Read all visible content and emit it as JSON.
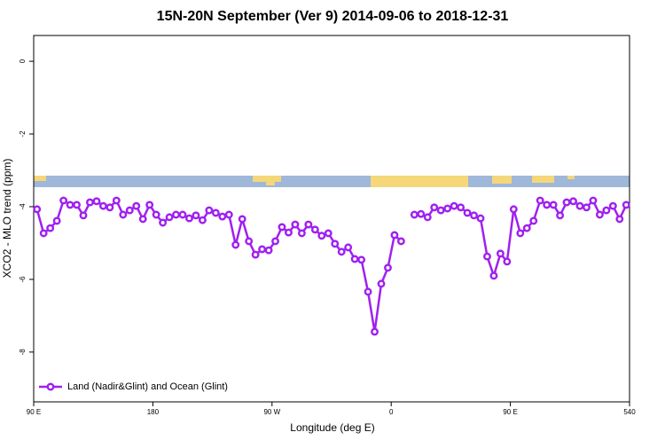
{
  "chart_data": {
    "type": "line",
    "title": "15N-20N September (Ver 9)   2014-09-06 to 2018-12-31",
    "x_label": "Longitude (deg E)",
    "y_label": "XCO2 - MLO trend (ppm)",
    "x": [
      92.5,
      97.5,
      102.5,
      107.5,
      112.5,
      117.5,
      122.5,
      127.5,
      132.5,
      137.5,
      142.5,
      147.5,
      152.5,
      157.5,
      162.5,
      167.5,
      172.5,
      177.5,
      182.5,
      187.5,
      192.5,
      197.5,
      202.5,
      207.5,
      212.5,
      217.5,
      222.5,
      227.5,
      232.5,
      237.5,
      242.5,
      247.5,
      252.5,
      257.5,
      262.5,
      267.5,
      272.5,
      277.5,
      282.5,
      287.5,
      292.5,
      297.5,
      302.5,
      307.5,
      312.5,
      317.5,
      322.5,
      327.5,
      332.5,
      337.5,
      342.5,
      347.5,
      352.5,
      357.5,
      362.5,
      367.5,
      372.5,
      377.5,
      382.5,
      387.5,
      392.5,
      397.5,
      402.5,
      407.5,
      412.5,
      417.5,
      422.5,
      427.5,
      432.5,
      437.5,
      442.5,
      447.5,
      452.5,
      457.5,
      462.5,
      467.5,
      472.5,
      477.5,
      482.5,
      487.5,
      492.5,
      497.5,
      502.5,
      507.5,
      512.5,
      517.5,
      522.5,
      527.5,
      532.5,
      537.5
    ],
    "series": [
      {
        "name": "Land (Nadir&Glint) and Ocean (Glint)",
        "color": "#a020f0",
        "values": [
          -4.07,
          -4.73,
          -4.59,
          -4.39,
          -3.83,
          -3.95,
          -3.95,
          -4.24,
          -3.88,
          -3.85,
          -3.98,
          -4.02,
          -3.83,
          -4.22,
          -4.1,
          -3.98,
          -4.34,
          -3.95,
          -4.22,
          -4.44,
          -4.29,
          -4.22,
          -4.22,
          -4.32,
          -4.24,
          -4.37,
          -4.1,
          -4.17,
          -4.27,
          -4.22,
          -5.05,
          -4.34,
          -4.95,
          -5.32,
          -5.17,
          -5.2,
          -4.95,
          -4.56,
          -4.71,
          -4.49,
          -4.73,
          -4.49,
          -4.63,
          -4.8,
          -4.73,
          -5.02,
          -5.24,
          -5.12,
          -5.44,
          -5.46,
          -6.34,
          -7.44,
          -6.12,
          -5.68,
          -4.78,
          -4.95,
          null,
          -4.22,
          -4.2,
          -4.29,
          -4.02,
          -4.1,
          -4.05,
          -3.98,
          -4.02,
          -4.17,
          -4.24,
          -4.32,
          -5.37,
          -5.9,
          -5.29,
          -5.51,
          -4.07,
          -4.73,
          -4.59,
          -4.39,
          -3.83,
          -3.95,
          -3.95,
          -4.24,
          -3.88,
          -3.85,
          -3.98,
          -4.02,
          -3.83,
          -4.22,
          -4.1,
          -3.98,
          -4.34,
          -3.95
        ]
      }
    ],
    "xlim": [
      90,
      540
    ],
    "xticks": [
      {
        "value": 90,
        "label": "90 E"
      },
      180,
      {
        "value": 270,
        "label": "90 W"
      },
      {
        "value": 360,
        "label": "0"
      },
      {
        "value": 450,
        "label": "90 E"
      },
      540
    ],
    "ylim": [
      -9.37,
      0.71
    ],
    "yticks": [
      0,
      -2,
      -4,
      -6,
      -8
    ],
    "legend": "bottomleft"
  }
}
